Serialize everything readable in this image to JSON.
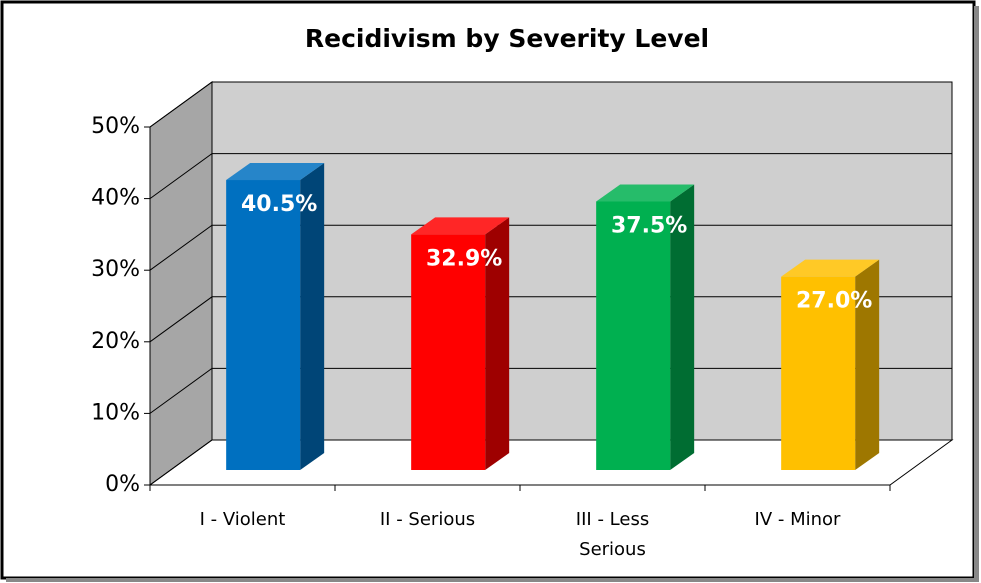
{
  "chart_data": {
    "type": "bar3d",
    "title": "Recidivism by Severity Level",
    "categories": [
      "I - Violent",
      "II - Serious",
      "III - Less Serious",
      "IV - Minor"
    ],
    "values": [
      40.5,
      32.9,
      37.5,
      27.0
    ],
    "value_labels": [
      "40.5%",
      "32.9%",
      "37.5%",
      "27.0%"
    ],
    "colors": [
      "#0070c0",
      "#ff0000",
      "#00b050",
      "#ffc000"
    ],
    "ylim": [
      0,
      50
    ],
    "yticks": [
      {
        "value": 0,
        "label": "0%"
      },
      {
        "value": 10,
        "label": "10%"
      },
      {
        "value": 20,
        "label": "20%"
      },
      {
        "value": 30,
        "label": "30%"
      },
      {
        "value": 40,
        "label": "40%"
      },
      {
        "value": 50,
        "label": "50%"
      }
    ],
    "grid": true
  }
}
